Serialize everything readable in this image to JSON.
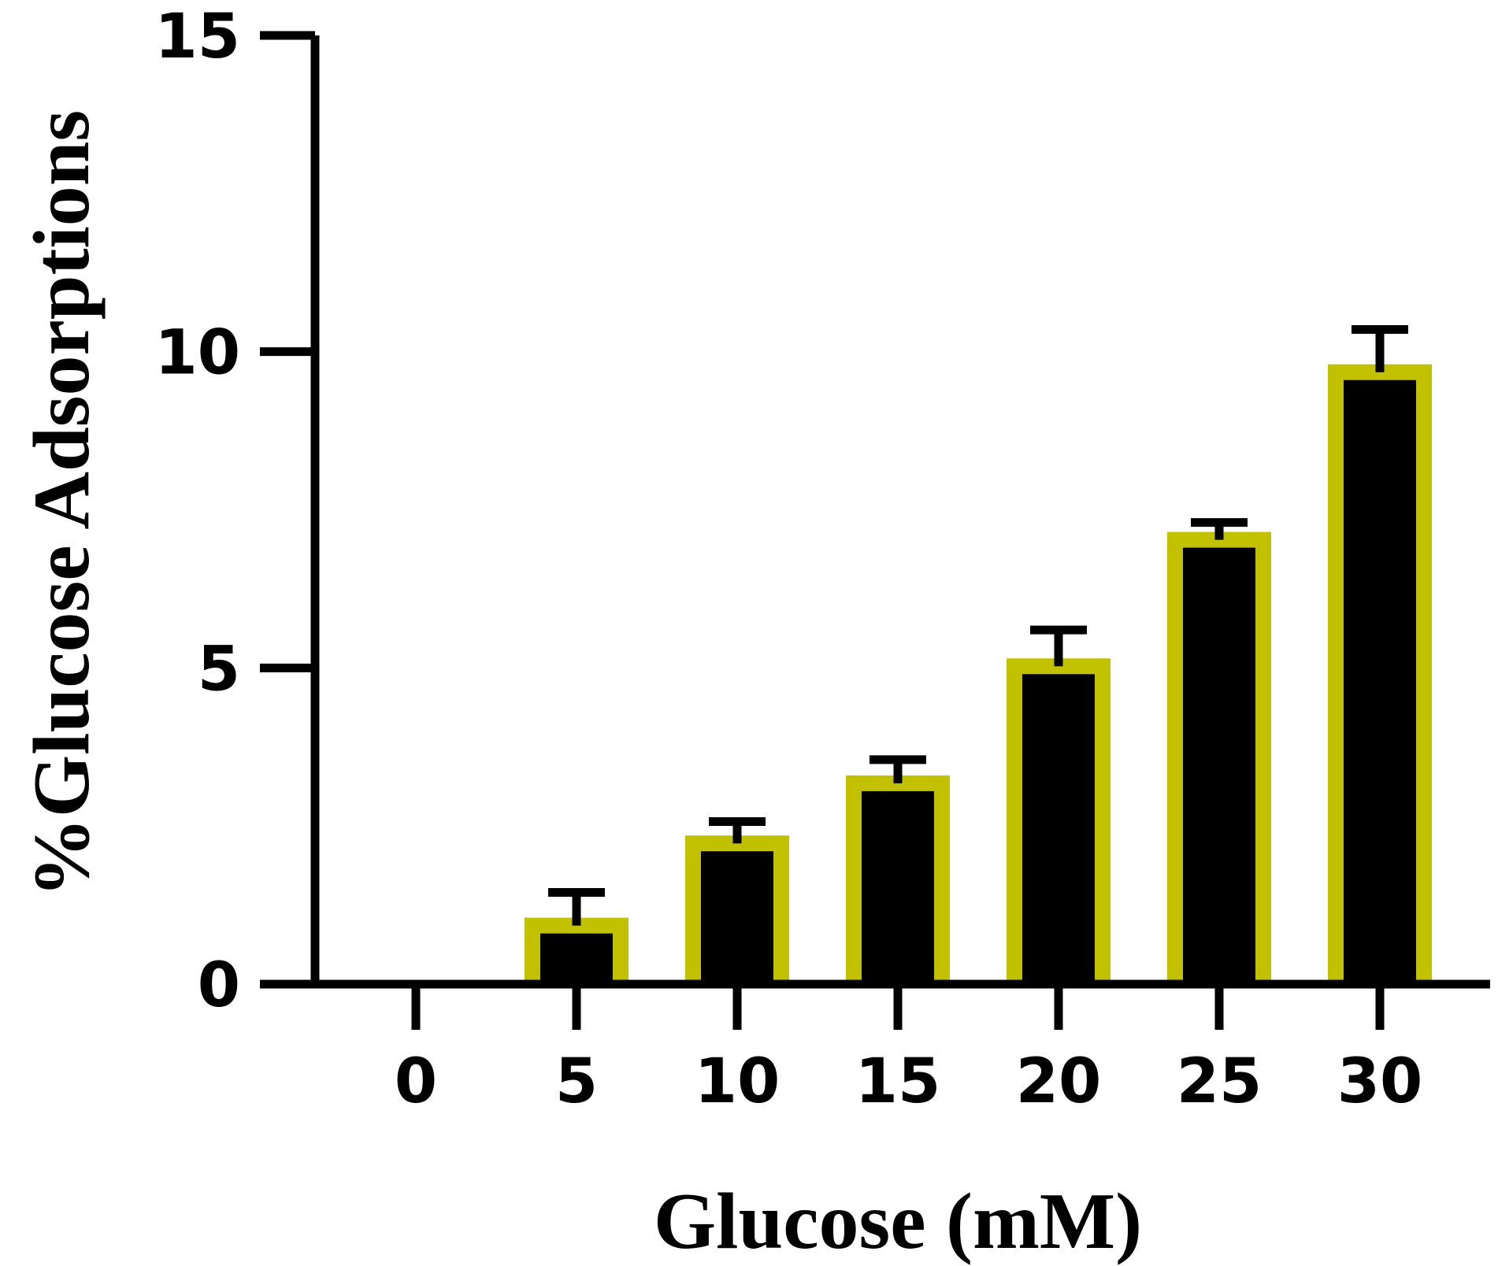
{
  "chart_data": {
    "type": "bar",
    "categories": [
      "0",
      "5",
      "10",
      "15",
      "20",
      "25",
      "30"
    ],
    "values": [
      0,
      1.05,
      2.35,
      3.3,
      5.15,
      7.15,
      9.8
    ],
    "errors": [
      0,
      0.4,
      0.22,
      0.25,
      0.45,
      0.15,
      0.55
    ],
    "xlabel": "Glucose (mM)",
    "ylabel": "%Glucose Adsorptions",
    "ylim": [
      0,
      15
    ],
    "yticks": [
      0,
      5,
      10,
      15
    ],
    "grid": false,
    "colors": {
      "bar_outline": "#c2c100",
      "bar_fill": "#000000",
      "axis": "#000000"
    }
  }
}
